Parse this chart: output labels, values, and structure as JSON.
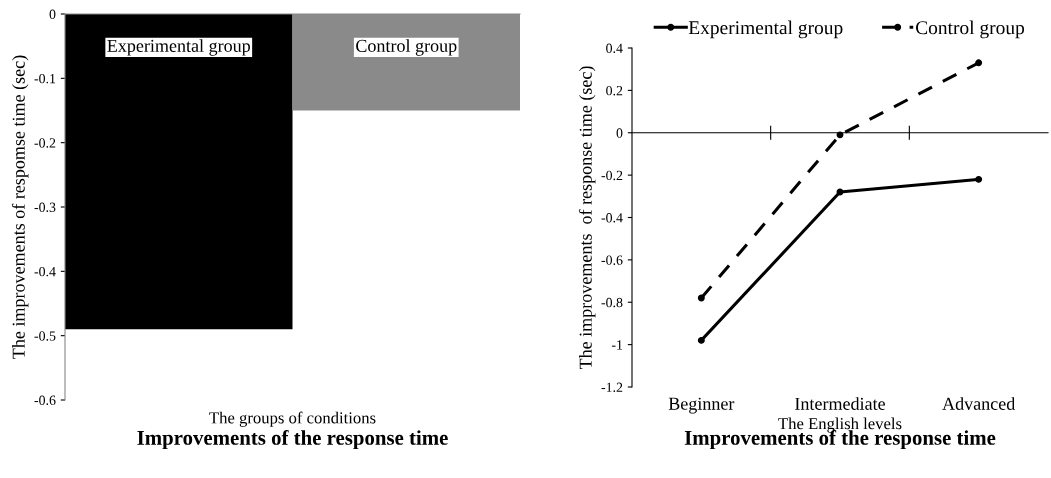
{
  "chart_data": [
    {
      "type": "bar",
      "title": "Improvements of the response time",
      "xlabel": "The groups of conditions",
      "ylabel": "The improvements of respomse time (sec)",
      "categories": [
        "Experimental group",
        "Control group"
      ],
      "values": [
        -0.49,
        -0.15
      ],
      "colors": [
        "#000000",
        "#8a8a8a"
      ],
      "ylim": [
        -0.6,
        0
      ],
      "yticks": [
        {
          "value": -0.6,
          "label": "-0.6"
        },
        {
          "value": -0.5,
          "label": "-0.5"
        },
        {
          "value": -0.4,
          "label": "-0.4"
        },
        {
          "value": -0.3,
          "label": "-0.3"
        },
        {
          "value": -0.2,
          "label": "-0.2"
        },
        {
          "value": -0.1,
          "label": "-0.1"
        },
        0
      ]
    },
    {
      "type": "line",
      "title": "Improvements of the response time",
      "xlabel": "The English levels",
      "ylabel": "The improvements  of response time (sec)",
      "categories": [
        "Beginner",
        "Intermediate",
        "Advanced"
      ],
      "series": [
        {
          "name": "Experimental group",
          "color": "#000000",
          "values": [
            -0.98,
            -0.28,
            -0.22
          ],
          "line_style": "solid"
        },
        {
          "name": "Control group",
          "color": "#000000",
          "values": [
            -0.78,
            -0.01,
            0.33
          ],
          "line_style": "dashed"
        }
      ],
      "marker": "circle",
      "legend": "top",
      "ylim": [
        -1.2,
        0.4
      ],
      "yticks": [
        {
          "value": -1.2,
          "label": "-1.2"
        },
        {
          "value": -1.0,
          "label": "-1"
        },
        {
          "value": -0.8,
          "label": "-0.8"
        },
        {
          "value": -0.6,
          "label": "-0.6"
        },
        {
          "value": -0.4,
          "label": "-0.4"
        },
        {
          "value": -0.2,
          "label": "-0.2"
        },
        0,
        0.2,
        0.4
      ]
    }
  ]
}
